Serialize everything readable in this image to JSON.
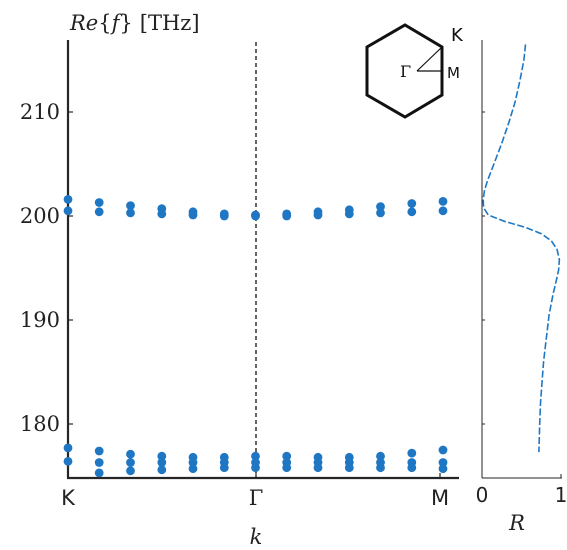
{
  "chart_data": [
    {
      "type": "scatter",
      "ylabel": "Re{f} [THz]",
      "ylabel_parts": {
        "re": "Re",
        "open": "{",
        "f": "f",
        "close": "}",
        "unit": "[THz]"
      },
      "xlabel": "k",
      "x_ticks": [
        "K",
        "Γ",
        "M"
      ],
      "y_ticks": [
        180,
        190,
        200,
        210
      ],
      "ylim": [
        175,
        217
      ],
      "grid": false,
      "color": "#1f77c4",
      "series": [
        {
          "x": [
            0.0,
            0.0833,
            0.1667,
            0.25,
            0.3333,
            0.4167,
            0.5,
            0.5833,
            0.6667,
            0.75,
            0.8333,
            0.9167,
            1.0
          ],
          "values": [
            201.6,
            201.3,
            201.0,
            200.7,
            200.4,
            200.2,
            200.1,
            200.2,
            200.4,
            200.6,
            200.9,
            201.2,
            201.4
          ]
        },
        {
          "x": [
            0.0,
            0.0833,
            0.1667,
            0.25,
            0.3333,
            0.4167,
            0.5,
            0.5833,
            0.6667,
            0.75,
            0.8333,
            0.9167,
            1.0
          ],
          "values": [
            200.5,
            200.4,
            200.3,
            200.2,
            200.1,
            200.0,
            200.0,
            200.0,
            200.1,
            200.2,
            200.3,
            200.4,
            200.5
          ]
        },
        {
          "x": [
            0.0,
            0.0833,
            0.1667,
            0.25,
            0.3333,
            0.4167,
            0.5,
            0.5833,
            0.6667,
            0.75,
            0.8333,
            0.9167,
            1.0
          ],
          "values": [
            177.7,
            177.4,
            177.1,
            176.9,
            176.8,
            176.8,
            176.9,
            176.9,
            176.8,
            176.8,
            176.9,
            177.2,
            177.5
          ]
        },
        {
          "x": [
            0.0,
            0.0833,
            0.1667,
            0.25,
            0.3333,
            0.4167,
            0.5,
            0.5833,
            0.6667,
            0.75,
            0.8333,
            0.9167,
            1.0
          ],
          "values": [
            176.4,
            176.3,
            176.3,
            176.3,
            176.3,
            176.3,
            176.3,
            176.3,
            176.3,
            176.3,
            176.3,
            176.3,
            176.3
          ]
        },
        {
          "x": [
            0.0833,
            0.1667,
            0.25,
            0.3333,
            0.4167,
            0.5,
            0.5833,
            0.6667,
            0.75,
            0.8333,
            0.9167,
            1.0
          ],
          "values": [
            175.3,
            175.5,
            175.6,
            175.7,
            175.8,
            175.8,
            175.8,
            175.8,
            175.8,
            175.8,
            175.8,
            175.7
          ]
        }
      ]
    },
    {
      "type": "line",
      "xlabel": "R",
      "x_ticks": [
        0,
        1
      ],
      "xlim": [
        0,
        1
      ],
      "ylim": [
        175,
        217
      ],
      "color": "#1f77c4",
      "series": [
        {
          "x": [
            0.55,
            0.53,
            0.48,
            0.42,
            0.34,
            0.25,
            0.15,
            0.07,
            0.03,
            0.015,
            0.02,
            0.08,
            0.28,
            0.55,
            0.75,
            0.88,
            0.95,
            0.98,
            0.97,
            0.94,
            0.9,
            0.85,
            0.81,
            0.78,
            0.76,
            0.74,
            0.73,
            0.72
          ],
          "values": [
            216.5,
            215.0,
            213.0,
            211.0,
            209.0,
            207.0,
            205.0,
            203.4,
            202.4,
            201.6,
            200.8,
            200.1,
            199.5,
            198.9,
            198.3,
            197.6,
            196.8,
            195.8,
            194.8,
            193.8,
            192.5,
            190.5,
            188.0,
            186.0,
            184.0,
            182.0,
            180.0,
            177.3
          ]
        }
      ]
    }
  ],
  "inset": {
    "labels": {
      "k": "K",
      "gamma": "Γ",
      "m": "M"
    }
  }
}
